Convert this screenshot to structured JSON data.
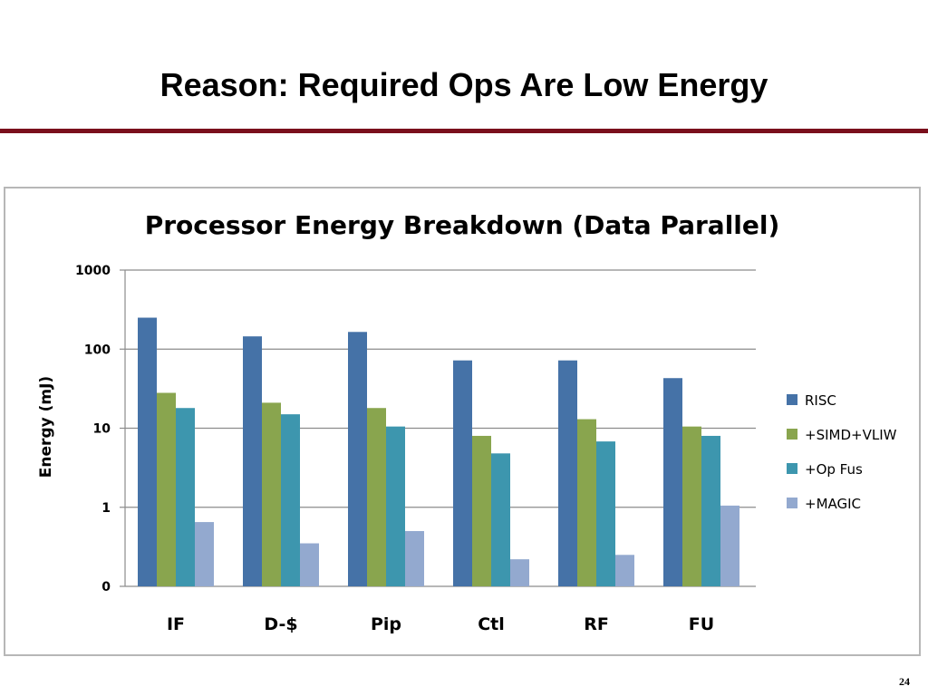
{
  "slide": {
    "title": "Reason: Required Ops Are Low Energy",
    "page_number": "24"
  },
  "colors": {
    "title_rule": "#7a0f1c",
    "RISC": "#4572a7",
    "+SIMD+VLIW": "#89a54e",
    "+Op Fus": "#3d96ae",
    "+MAGIC": "#93a9cf"
  },
  "chart_data": {
    "type": "bar",
    "title": "Processor Energy Breakdown (Data Parallel)",
    "xlabel": "",
    "ylabel": "Energy (mJ)",
    "yscale": "log",
    "ylim": [
      0.1,
      1000
    ],
    "yticks": [
      {
        "value": 1000,
        "label": "1000"
      },
      {
        "value": 100,
        "label": "100"
      },
      {
        "value": 10,
        "label": "10"
      },
      {
        "value": 1,
        "label": "1"
      },
      {
        "value": 0.1,
        "label": "0"
      }
    ],
    "grid": true,
    "legend_position": "right",
    "categories": [
      "IF",
      "D-$",
      "Pip",
      "Ctl",
      "RF",
      "FU"
    ],
    "series": [
      {
        "name": "RISC",
        "values": [
          250,
          145,
          165,
          72,
          72,
          43
        ]
      },
      {
        "name": "+SIMD+VLIW",
        "values": [
          28,
          21,
          18,
          8,
          13,
          10.5
        ]
      },
      {
        "name": "+Op Fus",
        "values": [
          18,
          15,
          10.5,
          4.8,
          6.8,
          8
        ]
      },
      {
        "name": "+MAGIC",
        "values": [
          0.65,
          0.35,
          0.5,
          0.22,
          0.25,
          1.05
        ]
      }
    ]
  }
}
